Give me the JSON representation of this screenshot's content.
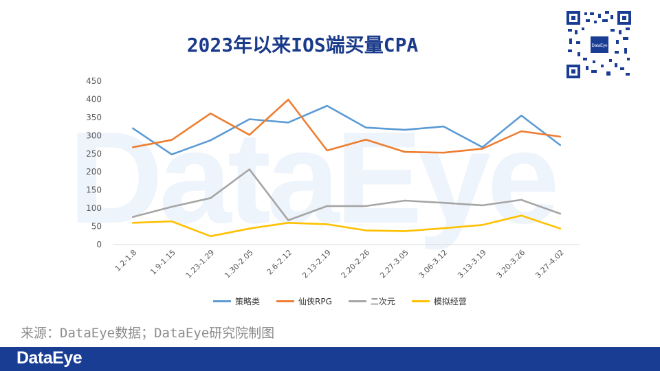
{
  "watermark": "DataEye",
  "title": "2023年以来IOS端买量CPA",
  "source_note": "来源：DataEye数据；DataEye研究院制图",
  "footer_logo": "DataEye",
  "qr_label": "DataEye",
  "colors": {
    "title": "#1a3a8a",
    "footer": "#1a3d94",
    "series": [
      "#5b9bd5",
      "#ed7d31",
      "#a5a5a5",
      "#ffc000"
    ]
  },
  "chart_data": {
    "type": "line",
    "title": "2023年以来IOS端买量CPA",
    "xlabel": "",
    "ylabel": "",
    "ylim": [
      0,
      450
    ],
    "yticks": [
      0,
      50,
      100,
      150,
      200,
      250,
      300,
      350,
      400,
      450
    ],
    "grid": "horizontal-baseline-only",
    "legend": "bottom",
    "categories": [
      "1.2-1.8",
      "1.9-1.15",
      "1.23-1.29",
      "1.30-2.05",
      "2.6-2.12",
      "2.13-2.19",
      "2.20-2.26",
      "2.27-3.05",
      "3.06-3.12",
      "3.13-3.19",
      "3.20-3.26",
      "3.27-4.02"
    ],
    "series": [
      {
        "name": "策略类",
        "values": [
          320,
          248,
          287,
          345,
          336,
          382,
          322,
          316,
          325,
          268,
          355,
          274
        ]
      },
      {
        "name": "仙侠RPG",
        "values": [
          268,
          288,
          361,
          302,
          399,
          259,
          289,
          255,
          253,
          264,
          312,
          297
        ]
      },
      {
        "name": "二次元",
        "values": [
          76,
          104,
          128,
          207,
          67,
          106,
          106,
          121,
          115,
          108,
          123,
          85
        ]
      },
      {
        "name": "模拟经营",
        "values": [
          60,
          64,
          23,
          44,
          60,
          56,
          39,
          37,
          45,
          54,
          80,
          44
        ]
      }
    ]
  }
}
